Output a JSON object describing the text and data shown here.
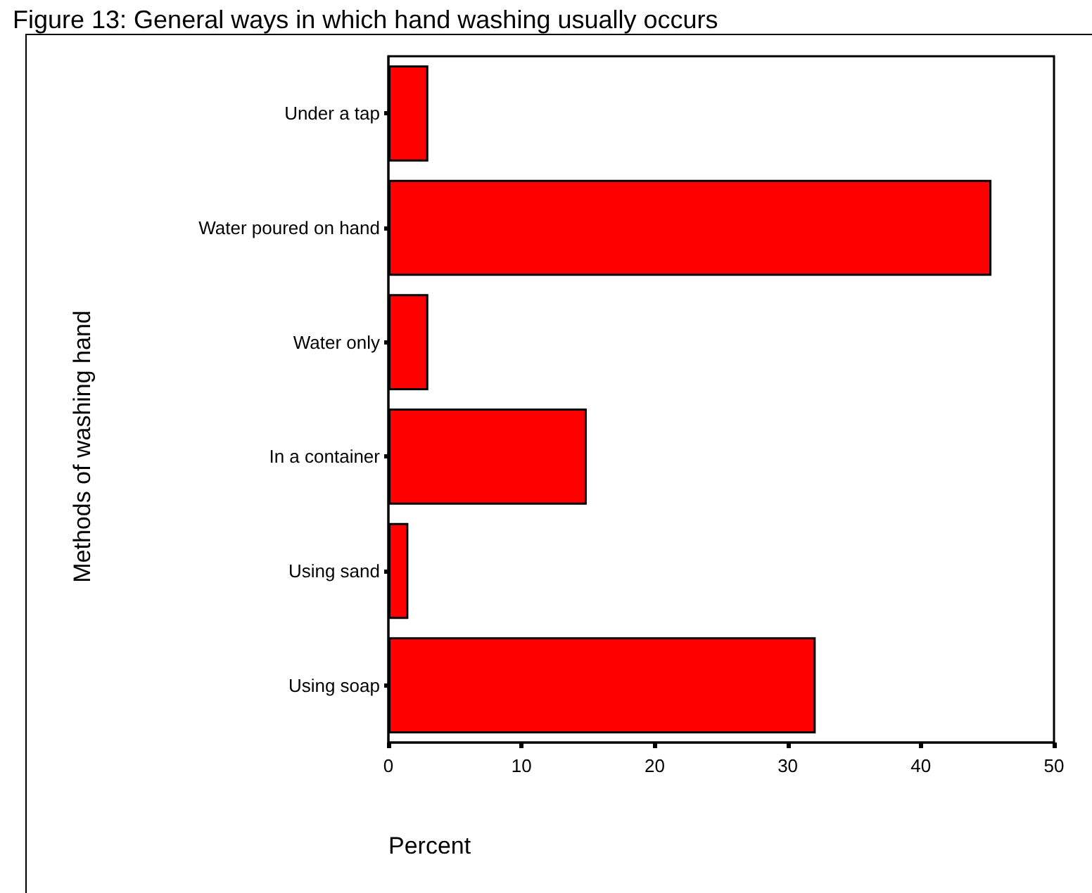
{
  "chart_data": {
    "type": "bar",
    "orientation": "horizontal",
    "title": "Figure 13: General ways in which hand washing usually occurs",
    "ylabel": "Methods of washing hand",
    "xlabel": "Percent",
    "categories": [
      "Under a tap",
      "Water poured on hand",
      "Water only",
      "In a container",
      "Using sand",
      "Using soap"
    ],
    "values": [
      3.0,
      45.3,
      3.0,
      14.9,
      1.5,
      32.1
    ],
    "color": "#ff0000",
    "xlim": [
      0,
      50
    ],
    "xticks": [
      0,
      10,
      20,
      30,
      40,
      50
    ],
    "grid": false
  }
}
